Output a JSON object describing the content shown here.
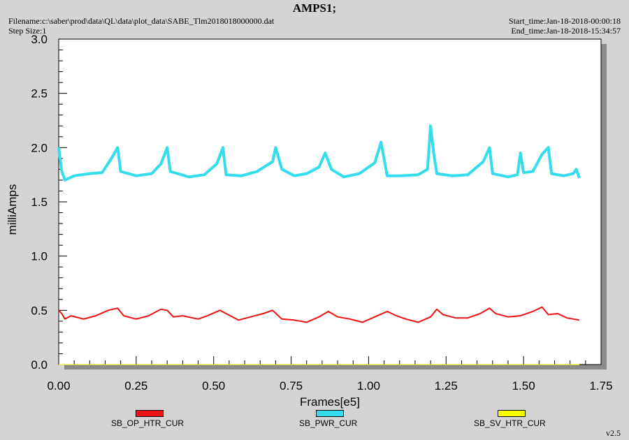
{
  "header": {
    "title": "AMPS1;",
    "filename": "Filename:c:\\saber\\prod\\data\\QL\\data\\plot_data\\SABE_Tlm2018018000000.dat",
    "step_size": "Step Size:1",
    "start_time": "Start_time:Jan-18-2018-00:00:18",
    "end_time": "End_time:Jan-18-2018-15:34:57"
  },
  "version": "v2.5",
  "chart_data": {
    "type": "line",
    "xlabel": "Frames[e5]",
    "ylabel": "milliAmps",
    "xlim": [
      0.0,
      1.75
    ],
    "ylim": [
      0.0,
      3.0
    ],
    "xticks": [
      "0.00",
      "0.25",
      "0.50",
      "0.75",
      "1.00",
      "1.25",
      "1.50",
      "1.75"
    ],
    "yticks": [
      "0.0",
      "0.5",
      "1.0",
      "1.5",
      "2.0",
      "2.5",
      "3.0"
    ],
    "legend_position": "bottom",
    "series": [
      {
        "name": "SB_OP_HTR_CUR",
        "color": "#ee1111",
        "x": [
          0.0,
          0.01,
          0.02,
          0.04,
          0.08,
          0.12,
          0.16,
          0.19,
          0.21,
          0.25,
          0.29,
          0.33,
          0.35,
          0.37,
          0.4,
          0.45,
          0.48,
          0.52,
          0.54,
          0.58,
          0.62,
          0.66,
          0.69,
          0.72,
          0.76,
          0.8,
          0.84,
          0.87,
          0.9,
          0.94,
          0.98,
          1.02,
          1.06,
          1.09,
          1.12,
          1.16,
          1.2,
          1.22,
          1.24,
          1.28,
          1.32,
          1.36,
          1.39,
          1.41,
          1.45,
          1.49,
          1.53,
          1.56,
          1.58,
          1.61,
          1.64,
          1.68
        ],
        "y": [
          0.5,
          0.47,
          0.42,
          0.45,
          0.42,
          0.45,
          0.5,
          0.52,
          0.45,
          0.42,
          0.45,
          0.51,
          0.5,
          0.44,
          0.45,
          0.42,
          0.45,
          0.5,
          0.47,
          0.41,
          0.44,
          0.47,
          0.5,
          0.42,
          0.41,
          0.39,
          0.44,
          0.49,
          0.44,
          0.42,
          0.39,
          0.44,
          0.49,
          0.45,
          0.42,
          0.39,
          0.44,
          0.51,
          0.46,
          0.43,
          0.43,
          0.47,
          0.52,
          0.47,
          0.44,
          0.45,
          0.49,
          0.53,
          0.46,
          0.47,
          0.43,
          0.41
        ]
      },
      {
        "name": "SB_PWR_CUR",
        "color": "#33ddee",
        "x": [
          0.0,
          0.01,
          0.02,
          0.05,
          0.1,
          0.14,
          0.17,
          0.19,
          0.2,
          0.25,
          0.3,
          0.33,
          0.35,
          0.36,
          0.42,
          0.47,
          0.51,
          0.53,
          0.54,
          0.59,
          0.64,
          0.69,
          0.7,
          0.72,
          0.76,
          0.8,
          0.84,
          0.86,
          0.88,
          0.92,
          0.97,
          1.02,
          1.04,
          1.06,
          1.1,
          1.16,
          1.19,
          1.2,
          1.21,
          1.22,
          1.27,
          1.32,
          1.37,
          1.39,
          1.4,
          1.45,
          1.48,
          1.49,
          1.5,
          1.53,
          1.56,
          1.58,
          1.59,
          1.63,
          1.66,
          1.67,
          1.68
        ],
        "y": [
          2.0,
          1.78,
          1.7,
          1.74,
          1.76,
          1.77,
          1.9,
          2.0,
          1.78,
          1.74,
          1.76,
          1.85,
          2.0,
          1.78,
          1.73,
          1.75,
          1.85,
          2.0,
          1.75,
          1.74,
          1.78,
          1.87,
          2.0,
          1.8,
          1.74,
          1.76,
          1.82,
          1.95,
          1.8,
          1.73,
          1.76,
          1.86,
          2.05,
          1.74,
          1.74,
          1.75,
          1.8,
          2.2,
          1.95,
          1.76,
          1.74,
          1.75,
          1.87,
          2.0,
          1.76,
          1.73,
          1.75,
          1.95,
          1.77,
          1.78,
          1.94,
          2.0,
          1.76,
          1.74,
          1.76,
          1.8,
          1.72
        ]
      },
      {
        "name": "SB_SV_HTR_CUR",
        "color": "#ffff00",
        "x": [
          0.0,
          1.68
        ],
        "y": [
          0.0,
          0.0
        ]
      }
    ]
  }
}
